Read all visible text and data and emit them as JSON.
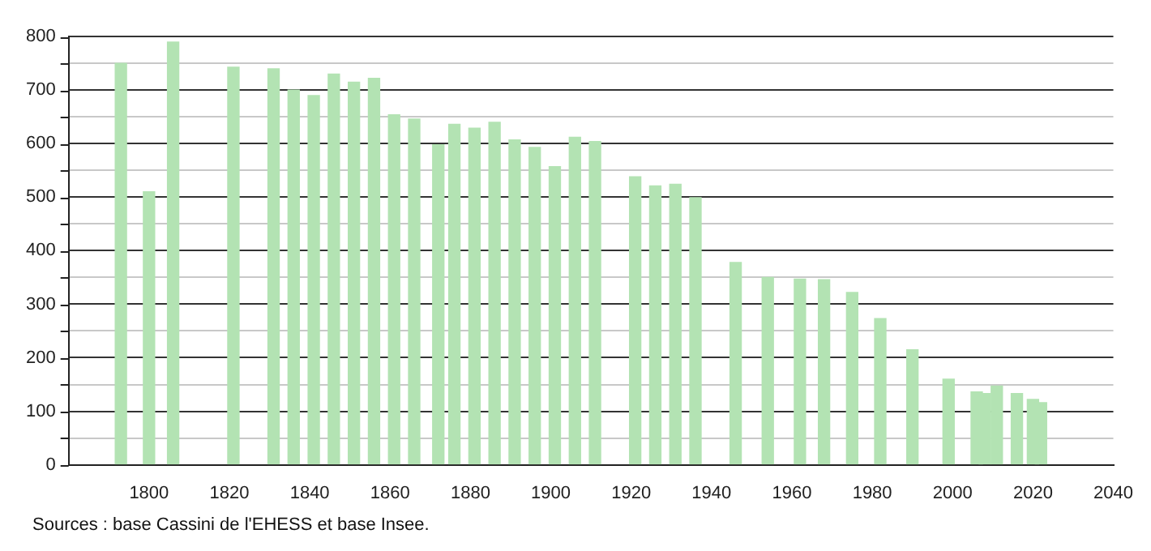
{
  "chart_data": {
    "type": "bar",
    "x": [
      1793,
      1800,
      1806,
      1821,
      1831,
      1836,
      1841,
      1846,
      1851,
      1856,
      1861,
      1866,
      1872,
      1876,
      1881,
      1886,
      1891,
      1896,
      1901,
      1906,
      1911,
      1921,
      1926,
      1931,
      1936,
      1946,
      1954,
      1962,
      1968,
      1975,
      1982,
      1990,
      1999,
      2006,
      2008,
      2011,
      2016,
      2020,
      2022
    ],
    "values": [
      750,
      510,
      790,
      743,
      740,
      700,
      690,
      730,
      715,
      722,
      654,
      646,
      598,
      636,
      629,
      640,
      607,
      593,
      557,
      612,
      604,
      538,
      521,
      524,
      499,
      378,
      350,
      347,
      346,
      322,
      273,
      215,
      160,
      136,
      133,
      147,
      133,
      122,
      116
    ],
    "color": "#b3e3b3",
    "xlim": [
      1780,
      2040
    ],
    "xticks": [
      1800,
      1820,
      1840,
      1860,
      1880,
      1900,
      1920,
      1940,
      1960,
      1980,
      2000,
      2020,
      2040
    ],
    "ylim": [
      0,
      800
    ],
    "yticks": [
      0,
      {
        "value": 50,
        "label": null
      },
      100,
      {
        "value": 150,
        "label": null
      },
      200,
      {
        "value": 250,
        "label": null
      },
      300,
      {
        "value": 350,
        "label": null
      },
      400,
      {
        "value": 450,
        "label": null
      },
      500,
      {
        "value": 550,
        "label": null
      },
      600,
      {
        "value": 650,
        "label": null
      },
      700,
      {
        "value": 750,
        "label": null
      },
      800
    ],
    "grid": "y",
    "legend": false,
    "annotations": [
      "Sources : base Cassini de l'EHESS et base Insee."
    ]
  }
}
